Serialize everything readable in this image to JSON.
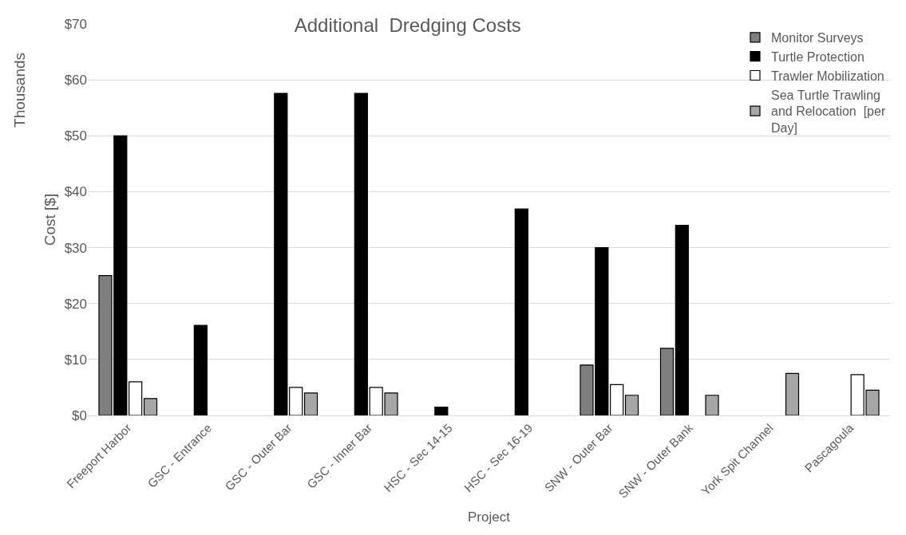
{
  "chart_data": {
    "type": "bar",
    "title": "Additional  Dredging Costs",
    "xlabel": "Project",
    "ylabel": "Cost [$]",
    "annotations": [
      "Thousands"
    ],
    "categories": [
      "Freeport Harbor",
      "GSC - Entrance",
      "GSC - Outer Bar",
      "GSC - Inner Bar",
      "HSC - Sec 14-15",
      "HSC - Sec 16-19",
      "SNW - Outer Bar",
      "SNW - Outer Bank",
      "York Spit Channel",
      "Pascagoula"
    ],
    "series": [
      {
        "name": "Monitor Surveys",
        "color": "#7f7f7f",
        "values": [
          25,
          null,
          null,
          null,
          null,
          null,
          9,
          12,
          null,
          null
        ]
      },
      {
        "name": "Turtle Protection",
        "color": "#000000",
        "values": [
          50,
          16.1,
          57.6,
          57.6,
          1.5,
          36.9,
          30,
          34,
          null,
          null
        ]
      },
      {
        "name": "Trawler Mobilization",
        "color": "#ffffff",
        "values": [
          6,
          null,
          5,
          5,
          null,
          null,
          5.5,
          null,
          null,
          7.3
        ]
      },
      {
        "name": "Sea Turtle Trawling and Relocation  [per Day]",
        "color": "#a6a6a6",
        "values": [
          3,
          null,
          4,
          4,
          null,
          null,
          3.6,
          3.6,
          7.5,
          4.5
        ]
      }
    ],
    "ylim": [
      0,
      70
    ],
    "yticks": [
      {
        "value": 0,
        "label": "$0"
      },
      {
        "value": 10,
        "label": "$10"
      },
      {
        "value": 20,
        "label": "$20"
      },
      {
        "value": 30,
        "label": "$30"
      },
      {
        "value": 40,
        "label": "$40"
      },
      {
        "value": 50,
        "label": "$50"
      },
      {
        "value": 60,
        "label": "$60"
      },
      {
        "value": 70,
        "label": "$70"
      }
    ],
    "grid": "y",
    "legend": "top right"
  }
}
